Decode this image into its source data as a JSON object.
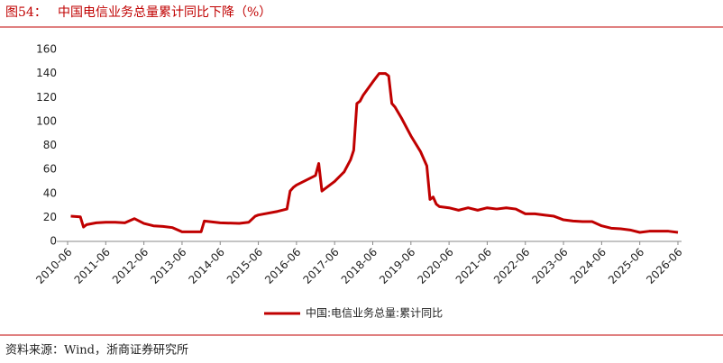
{
  "chart_data": {
    "type": "line",
    "figure_label": "图54：",
    "title": "中国电信业务总量累计同比下降（%）",
    "source": "资料来源：Wind，浙商证券研究所",
    "x": [
      "2010-07",
      "2010-10",
      "2010-11",
      "2010-12",
      "2011-03",
      "2011-06",
      "2011-09",
      "2011-12",
      "2012-03",
      "2012-06",
      "2012-09",
      "2012-12",
      "2013-03",
      "2013-06",
      "2013-09",
      "2013-12",
      "2014-01",
      "2014-06",
      "2014-12",
      "2015-03",
      "2015-05",
      "2015-06",
      "2015-12",
      "2016-03",
      "2016-04",
      "2016-05",
      "2016-06",
      "2016-12",
      "2017-01",
      "2017-02",
      "2017-06",
      "2017-09",
      "2017-11",
      "2017-12",
      "2018-01",
      "2018-02",
      "2018-03",
      "2018-06",
      "2018-08",
      "2018-10",
      "2018-11",
      "2018-12",
      "2019-01",
      "2019-03",
      "2019-06",
      "2019-09",
      "2019-11",
      "2019-12",
      "2020-01",
      "2020-02",
      "2020-03",
      "2020-06",
      "2020-09",
      "2020-12",
      "2021-03",
      "2021-06",
      "2021-09",
      "2021-12",
      "2022-03",
      "2022-06",
      "2022-09",
      "2022-12",
      "2023-03",
      "2023-06",
      "2023-09",
      "2023-12",
      "2024-03",
      "2024-06",
      "2024-09",
      "2024-12",
      "2025-03",
      "2025-06",
      "2025-09",
      "2025-12",
      "2026-03",
      "2026-06"
    ],
    "series": [
      {
        "name": "中国:电信业务总量:累计同比",
        "color": "#c00000",
        "values": [
          21,
          20.5,
          12,
          14,
          15.5,
          16,
          16,
          15.5,
          19,
          15,
          13,
          12.5,
          11.5,
          8,
          8,
          8,
          17,
          15.5,
          15,
          16,
          21,
          22,
          25,
          27,
          42,
          45,
          47,
          55,
          65,
          42,
          50,
          58,
          68,
          76,
          115,
          117,
          122,
          133,
          140,
          140,
          138,
          115,
          112,
          103,
          88,
          75,
          63,
          35,
          37,
          31,
          29,
          28,
          26,
          28,
          26,
          28,
          27,
          28,
          27,
          23,
          23,
          22,
          21,
          18,
          17,
          16.5,
          16.5,
          13,
          11,
          10.5,
          9.5,
          7.5,
          8.5,
          8.5,
          8.5,
          7.5
        ]
      }
    ],
    "xlim": [
      "2010-06",
      "2026-06"
    ],
    "xticks": [
      "2010-06",
      "2011-06",
      "2012-06",
      "2013-06",
      "2014-06",
      "2015-06",
      "2016-06",
      "2017-06",
      "2018-06",
      "2019-06",
      "2020-06",
      "2021-06",
      "2022-06",
      "2023-06",
      "2024-06",
      "2025-06",
      "2026-06"
    ],
    "ylim": [
      0,
      160
    ],
    "yticks": [
      0,
      20,
      40,
      60,
      80,
      100,
      120,
      140,
      160
    ],
    "grid": false
  }
}
